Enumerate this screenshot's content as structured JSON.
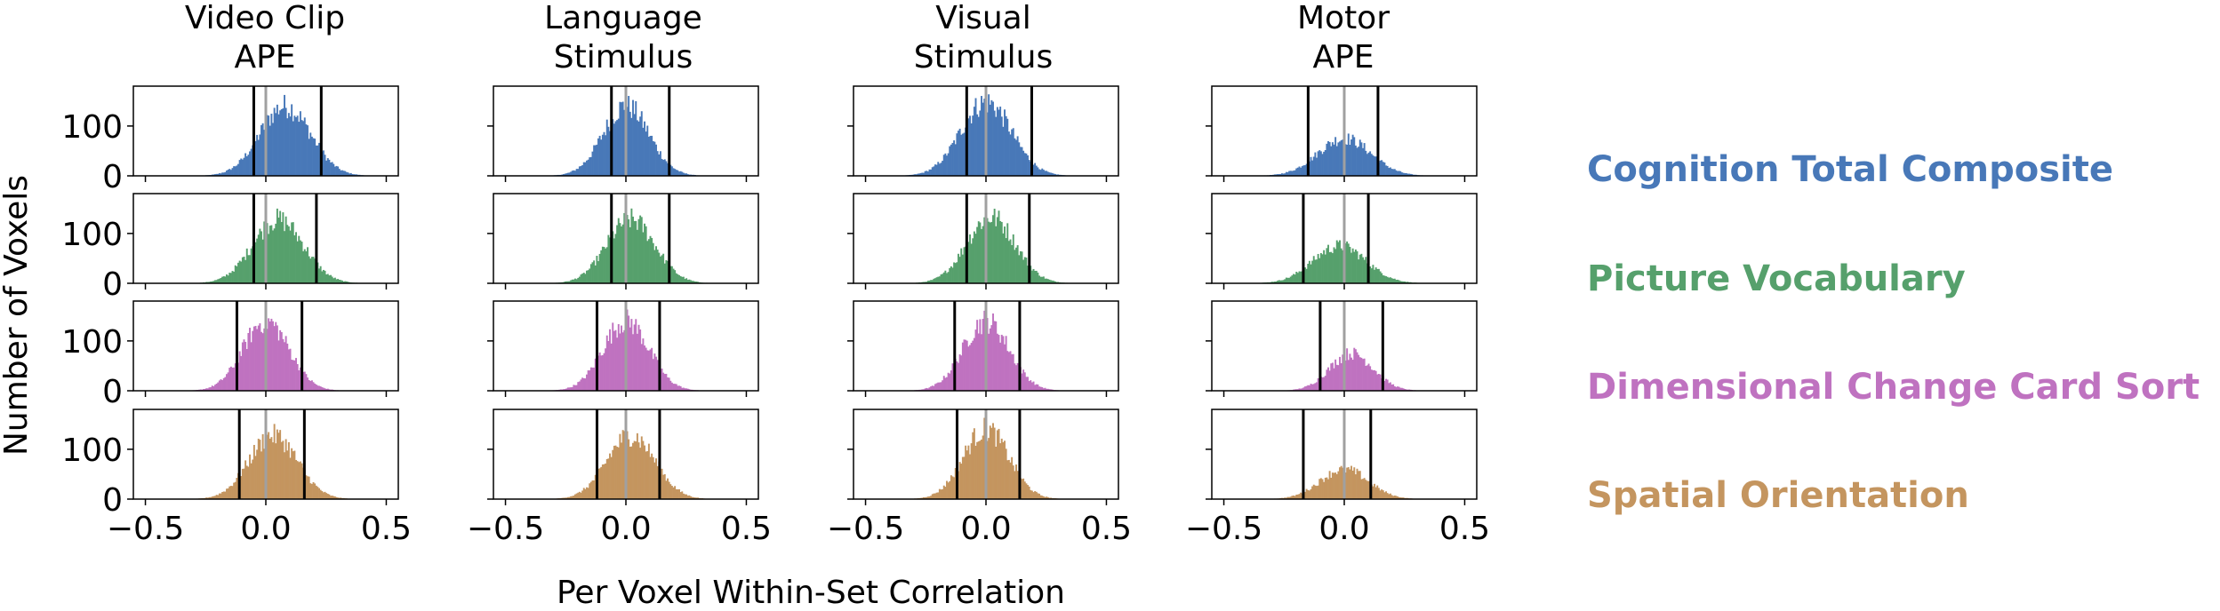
{
  "chart_data": {
    "type": "histogram-grid",
    "ylabel": "Number of Voxels",
    "xlabel": "Per Voxel Within-Set Correlation",
    "xlim": [
      -0.55,
      0.55
    ],
    "ylim": [
      0,
      180
    ],
    "xticks": [
      -0.5,
      0.0,
      0.5
    ],
    "xtick_labels": [
      "−0.5",
      "0.0",
      "0.5"
    ],
    "yticks": [
      0,
      100
    ],
    "ytick_labels": [
      "0",
      "100"
    ],
    "columns": [
      {
        "title_line1": "Video Clip",
        "title_line2": "APE"
      },
      {
        "title_line1": "Language",
        "title_line2": "Stimulus"
      },
      {
        "title_line1": "Visual",
        "title_line2": "Stimulus"
      },
      {
        "title_line1": "Motor",
        "title_line2": "APE"
      }
    ],
    "series": [
      {
        "name": "Cognition Total Composite",
        "color": "#4878b8"
      },
      {
        "name": "Picture Vocabulary",
        "color": "#56a06c"
      },
      {
        "name": "Dimensional Change Card Sort",
        "color": "#bf72c0"
      },
      {
        "name": "Spatial Orientation",
        "color": "#c4955f"
      }
    ],
    "zero_line_color": "#a0a0a0",
    "threshold_line_color": "#000000",
    "panels": [
      [
        {
          "mean": 0.08,
          "sd": 0.105,
          "peak": 140,
          "lines": [
            -0.05,
            0.23
          ]
        },
        {
          "mean": 0.0,
          "sd": 0.095,
          "peak": 140,
          "lines": [
            -0.06,
            0.18
          ]
        },
        {
          "mean": 0.0,
          "sd": 0.105,
          "peak": 148,
          "lines": [
            -0.08,
            0.19
          ]
        },
        {
          "mean": 0.0,
          "sd": 0.11,
          "peak": 75,
          "lines": [
            -0.15,
            0.14
          ]
        }
      ],
      [
        {
          "mean": 0.05,
          "sd": 0.105,
          "peak": 128,
          "lines": [
            -0.05,
            0.21
          ]
        },
        {
          "mean": 0.02,
          "sd": 0.1,
          "peak": 128,
          "lines": [
            -0.06,
            0.18
          ]
        },
        {
          "mean": 0.02,
          "sd": 0.1,
          "peak": 133,
          "lines": [
            -0.08,
            0.18
          ]
        },
        {
          "mean": -0.02,
          "sd": 0.11,
          "peak": 75,
          "lines": [
            -0.17,
            0.1
          ]
        }
      ],
      [
        {
          "mean": 0.0,
          "sd": 0.095,
          "peak": 140,
          "lines": [
            -0.12,
            0.15
          ]
        },
        {
          "mean": 0.0,
          "sd": 0.095,
          "peak": 140,
          "lines": [
            -0.12,
            0.14
          ]
        },
        {
          "mean": 0.0,
          "sd": 0.095,
          "peak": 140,
          "lines": [
            -0.13,
            0.14
          ]
        },
        {
          "mean": 0.03,
          "sd": 0.09,
          "peak": 75,
          "lines": [
            -0.1,
            0.16
          ]
        }
      ],
      [
        {
          "mean": 0.03,
          "sd": 0.1,
          "peak": 128,
          "lines": [
            -0.11,
            0.16
          ]
        },
        {
          "mean": 0.02,
          "sd": 0.1,
          "peak": 128,
          "lines": [
            -0.12,
            0.14
          ]
        },
        {
          "mean": 0.0,
          "sd": 0.095,
          "peak": 140,
          "lines": [
            -0.12,
            0.14
          ]
        },
        {
          "mean": 0.0,
          "sd": 0.1,
          "peak": 60,
          "lines": [
            -0.17,
            0.11
          ]
        }
      ]
    ]
  }
}
